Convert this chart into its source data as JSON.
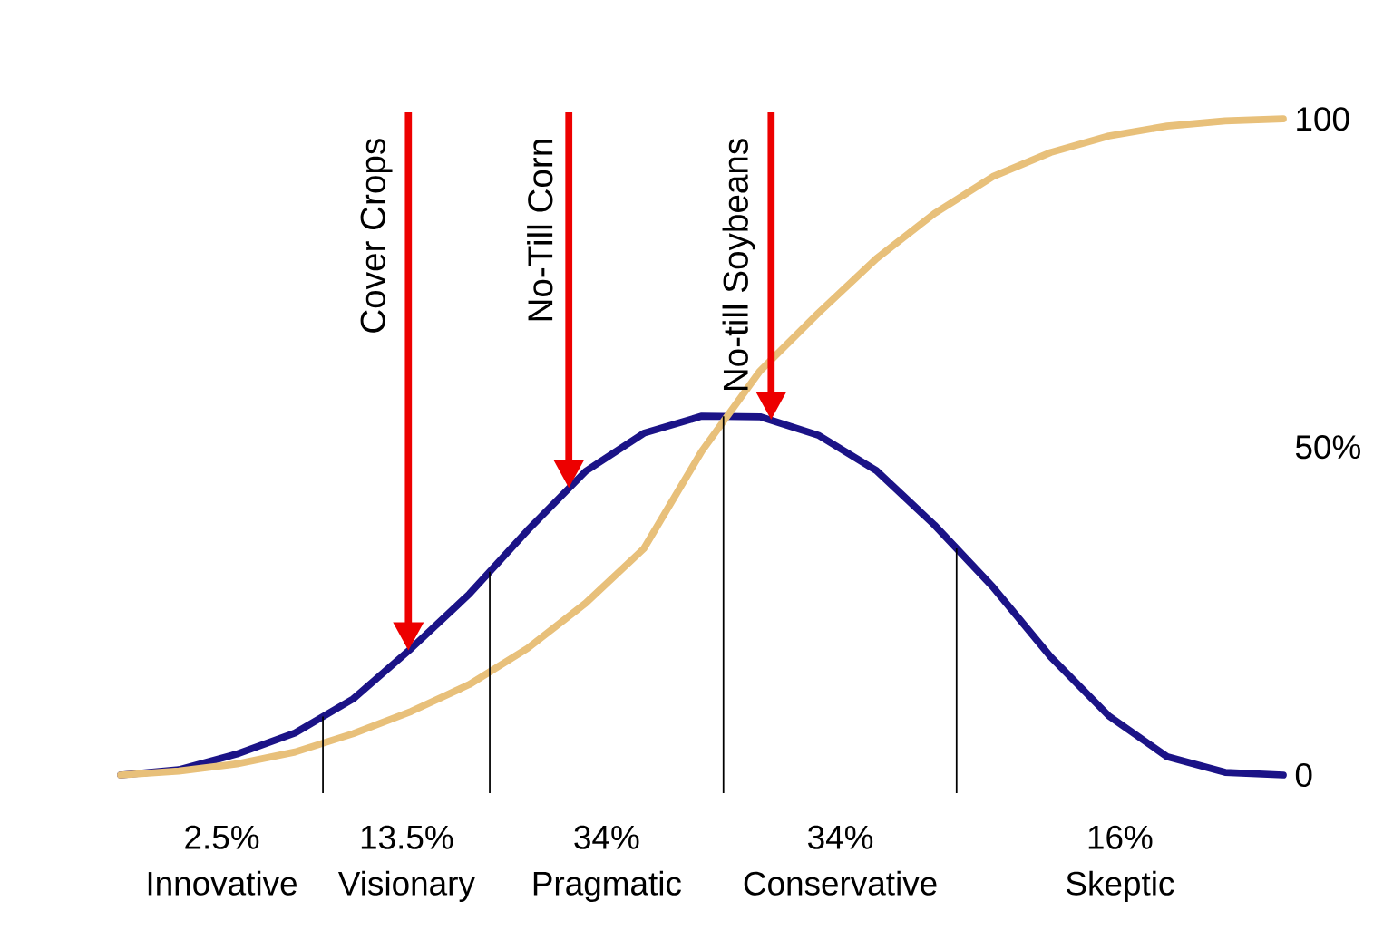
{
  "chart_data": {
    "type": "line",
    "categories": [
      null,
      null,
      null,
      null,
      null,
      null,
      null,
      null,
      null,
      null,
      null,
      null,
      null,
      null,
      null,
      null,
      null,
      null,
      null,
      null,
      null
    ],
    "series": [
      {
        "color": "#1b1387",
        "values": [
          0,
          0.8,
          3.2,
          6.4,
          11.6,
          19.3,
          27.6,
          37.3,
          46.3,
          52.1,
          54.7,
          54.6,
          51.8,
          46.4,
          38.1,
          28.7,
          18.0,
          9.0,
          2.8,
          0.4,
          0
        ]
      },
      {
        "color": "#e8c07a",
        "values": [
          0,
          0.6,
          1.7,
          3.5,
          6.3,
          9.7,
          13.8,
          19.3,
          26.2,
          34.5,
          49.4,
          61.6,
          70.4,
          78.7,
          85.6,
          91.2,
          94.9,
          97.4,
          98.9,
          99.7,
          100
        ]
      }
    ],
    "ylim": [
      0,
      101
    ],
    "yticks": [
      0,
      {
        "value": 50,
        "label": "50%"
      },
      100
    ],
    "grid": false,
    "annotations": [
      "Cover Crops",
      "No-Till Corn",
      "No-till Soybeans",
      "2.5% Innovative",
      "13.5% Visionary",
      "34% Pragmatic",
      "34% Conservative",
      "16% Skeptic"
    ]
  }
}
